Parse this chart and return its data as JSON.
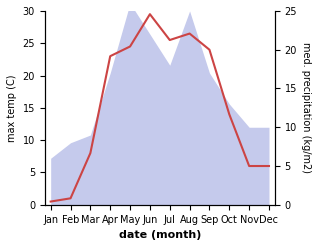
{
  "months": [
    "Jan",
    "Feb",
    "Mar",
    "Apr",
    "May",
    "Jun",
    "Jul",
    "Aug",
    "Sep",
    "Oct",
    "Nov",
    "Dec"
  ],
  "temperature": [
    0.5,
    1.0,
    8.0,
    23.0,
    24.5,
    29.5,
    25.5,
    26.5,
    24.0,
    14.0,
    6.0,
    6.0
  ],
  "precipitation": [
    6.0,
    8.0,
    9.0,
    17.0,
    26.0,
    22.0,
    18.0,
    25.0,
    17.0,
    13.0,
    10.0,
    10.0
  ],
  "temp_color": "#cc4444",
  "precip_fill_color": "#c5caec",
  "temp_ylim": [
    0,
    30
  ],
  "precip_ylim": [
    0,
    25
  ],
  "temp_yticks": [
    0,
    5,
    10,
    15,
    20,
    25,
    30
  ],
  "precip_yticks": [
    0,
    5,
    10,
    15,
    20,
    25
  ],
  "xlabel": "date (month)",
  "ylabel_left": "max temp (C)",
  "ylabel_right": "med. precipitation (kg/m2)"
}
